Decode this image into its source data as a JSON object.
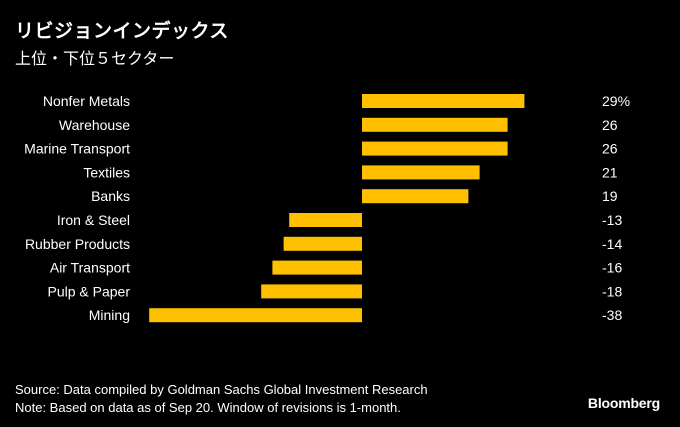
{
  "header": {
    "title": "リビジョンインデックス",
    "subtitle": "上位・下位５セクター"
  },
  "footer": {
    "source": "Source: Data compiled by Goldman Sachs Global Investment Research",
    "note": "Note: Based on data as of Sep 20. Window of revisions is 1-month."
  },
  "brand": "Bloomberg",
  "colors": {
    "background": "#000000",
    "bar": "#ffc000",
    "text": "#ffffff"
  },
  "chart_data": {
    "type": "bar",
    "orientation": "horizontal",
    "title": "リビジョンインデックス",
    "subtitle": "上位・下位５セクター",
    "categories": [
      "Nonfer Metals",
      "Warehouse",
      "Marine Transport",
      "Textiles",
      "Banks",
      "Iron & Steel",
      "Rubber Products",
      "Air Transport",
      "Pulp & Paper",
      "Mining"
    ],
    "values": [
      29,
      26,
      26,
      21,
      19,
      -13,
      -14,
      -16,
      -18,
      -38
    ],
    "value_labels": [
      "29%",
      "26",
      "26",
      "21",
      "19",
      "-13",
      "-14",
      "-16",
      "-18",
      "-38"
    ],
    "unit": "%",
    "xlim": [
      -38,
      29
    ],
    "grid": false,
    "legend": "none"
  }
}
